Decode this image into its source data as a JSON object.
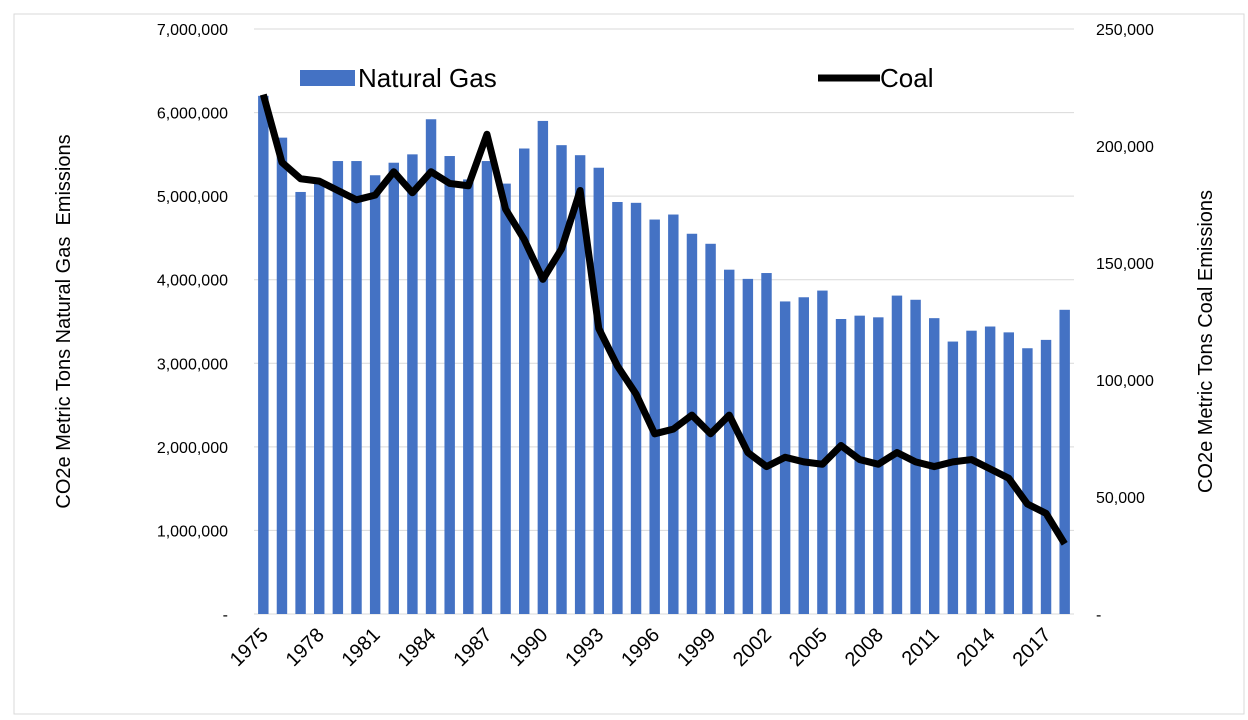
{
  "chart_data": {
    "type": "bar_line",
    "categories": [
      "1975",
      null,
      null,
      "1978",
      null,
      null,
      "1981",
      null,
      null,
      "1984",
      null,
      null,
      "1987",
      null,
      null,
      "1990",
      null,
      null,
      "1993",
      null,
      null,
      "1996",
      null,
      null,
      "1999",
      null,
      null,
      "2002",
      null,
      null,
      "2005",
      null,
      null,
      "2008",
      null,
      null,
      "2011",
      null,
      null,
      "2014",
      null,
      null,
      "2017",
      null
    ],
    "series": [
      {
        "name": "Natural Gas",
        "type": "bar",
        "color": "#4472c4",
        "axis": "y",
        "values": [
          6200000,
          5700000,
          5050000,
          5150000,
          5420000,
          5420000,
          5250000,
          5400000,
          5500000,
          5920000,
          5480000,
          5200000,
          5420000,
          5150000,
          5570000,
          5900000,
          5610000,
          5490000,
          5340000,
          4930000,
          4920000,
          4720000,
          4780000,
          4550000,
          4430000,
          4120000,
          4010000,
          4080000,
          3740000,
          3790000,
          3870000,
          3530000,
          3570000,
          3550000,
          3810000,
          3760000,
          3540000,
          3260000,
          3390000,
          3440000,
          3370000,
          3180000,
          3280000,
          3640000
        ]
      },
      {
        "name": "Coal",
        "type": "line",
        "color": "#000000",
        "axis": "y2",
        "values": [
          222000,
          193000,
          186000,
          185000,
          181000,
          177000,
          179000,
          189000,
          180000,
          189000,
          184000,
          183000,
          205000,
          173000,
          160000,
          143000,
          156000,
          181000,
          122000,
          106000,
          94000,
          77000,
          79000,
          85000,
          77000,
          85000,
          69000,
          63000,
          67000,
          65000,
          64000,
          72000,
          66000,
          64000,
          69000,
          65000,
          63000,
          65000,
          66000,
          62000,
          58000,
          47000,
          43000,
          30000
        ]
      }
    ],
    "ylabel": "CO2e Metric Tons Natural Gas  Emissions",
    "y2label": "CO2e Metric Tons Coal Emissions",
    "ylim": [
      0,
      7000000
    ],
    "yticks": [
      {
        "value": 0,
        "label": "-"
      },
      {
        "value": 1000000,
        "label": "1,000,000"
      },
      {
        "value": 2000000,
        "label": "2,000,000"
      },
      {
        "value": 3000000,
        "label": "3,000,000"
      },
      {
        "value": 4000000,
        "label": "4,000,000"
      },
      {
        "value": 5000000,
        "label": "5,000,000"
      },
      {
        "value": 6000000,
        "label": "6,000,000"
      },
      {
        "value": 7000000,
        "label": "7,000,000"
      }
    ],
    "y2lim": [
      0,
      250000
    ],
    "y2ticks": [
      {
        "value": 0,
        "label": "-"
      },
      {
        "value": 50000,
        "label": "50,000"
      },
      {
        "value": 100000,
        "label": "100,000"
      },
      {
        "value": 150000,
        "label": "150,000"
      },
      {
        "value": 200000,
        "label": "200,000"
      },
      {
        "value": 250000,
        "label": "250,000"
      }
    ],
    "grid": true,
    "legend": "top"
  }
}
